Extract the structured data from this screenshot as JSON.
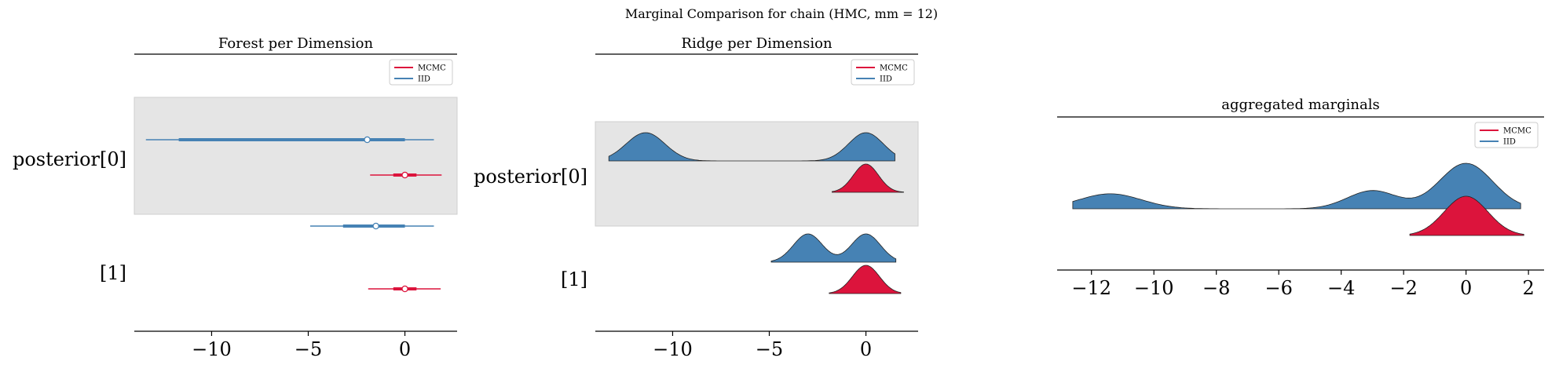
{
  "figure": {
    "suptitle": "Marginal Comparison for chain (HMC, mm = 12)"
  },
  "colors": {
    "mcmc": "#dc143c",
    "iid": "#4682b4",
    "band": "#e5e5e5",
    "axis": "#000000"
  },
  "legend": {
    "entries": [
      {
        "name": "MCMC",
        "color_key": "mcmc"
      },
      {
        "name": "IID",
        "color_key": "iid"
      }
    ]
  },
  "chart_data": [
    {
      "type": "forest",
      "title": "Forest per Dimension",
      "xlim": [
        -14,
        2.7
      ],
      "xticks": [
        -10,
        -5,
        0
      ],
      "xtick_labels": [
        "−10",
        "−5",
        "0"
      ],
      "row_labels": [
        "posterior[0]",
        "[1]"
      ],
      "legend_position": "top-right",
      "rows": [
        {
          "label": "posterior[0]",
          "shaded": true,
          "series": [
            {
              "name": "IID",
              "thin": [
                -13.4,
                1.5
              ],
              "thick": [
                -11.7,
                0.0
              ],
              "point": -1.95
            },
            {
              "name": "MCMC",
              "thin": [
                -1.8,
                1.9
              ],
              "thick": [
                -0.6,
                0.6
              ],
              "point": 0.0
            }
          ]
        },
        {
          "label": "[1]",
          "shaded": false,
          "series": [
            {
              "name": "IID",
              "thin": [
                -4.9,
                1.5
              ],
              "thick": [
                -3.2,
                0.0
              ],
              "point": -1.5
            },
            {
              "name": "MCMC",
              "thin": [
                -1.9,
                1.85
              ],
              "thick": [
                -0.6,
                0.6
              ],
              "point": 0.0
            }
          ]
        }
      ]
    },
    {
      "type": "ridge",
      "title": "Ridge per Dimension",
      "xlim": [
        -14,
        2.7
      ],
      "xticks": [
        -10,
        -5,
        0
      ],
      "xtick_labels": [
        "−10",
        "−5",
        "0"
      ],
      "row_labels": [
        "posterior[0]",
        "[1]"
      ],
      "legend_position": "top-right",
      "rows": [
        {
          "label": "posterior[0]",
          "shaded": true,
          "series": [
            {
              "name": "IID",
              "range": [
                -13.3,
                1.5
              ],
              "peaks": [
                {
                  "mu": -11.4,
                  "sd": 1.0,
                  "h": 1.0
                },
                {
                  "mu": 0.0,
                  "sd": 0.9,
                  "h": 1.0
                }
              ]
            },
            {
              "name": "MCMC",
              "range": [
                -1.75,
                1.95
              ],
              "peaks": [
                {
                  "mu": 0.0,
                  "sd": 0.65,
                  "h": 1.0
                }
              ]
            }
          ]
        },
        {
          "label": "[1]",
          "shaded": false,
          "series": [
            {
              "name": "IID",
              "range": [
                -4.9,
                1.55
              ],
              "peaks": [
                {
                  "mu": -3.0,
                  "sd": 0.75,
                  "h": 1.0
                },
                {
                  "mu": 0.0,
                  "sd": 0.75,
                  "h": 1.0
                }
              ]
            },
            {
              "name": "MCMC",
              "range": [
                -1.9,
                1.8
              ],
              "peaks": [
                {
                  "mu": 0.0,
                  "sd": 0.7,
                  "h": 1.0
                }
              ]
            }
          ]
        }
      ]
    },
    {
      "type": "density",
      "title": "aggregated marginals",
      "xlim": [
        -13.1,
        2.5
      ],
      "xticks": [
        -12,
        -10,
        -8,
        -6,
        -4,
        -2,
        0,
        2
      ],
      "xtick_labels": [
        "−12",
        "−10",
        "−8",
        "−6",
        "−4",
        "−2",
        "0",
        "2"
      ],
      "legend_position": "top-right",
      "series": [
        {
          "name": "IID",
          "range": [
            -12.6,
            1.75
          ],
          "peaks": [
            {
              "mu": -11.4,
              "sd": 1.0,
              "h": 0.33
            },
            {
              "mu": -3.0,
              "sd": 0.8,
              "h": 0.4
            },
            {
              "mu": 0.0,
              "sd": 0.85,
              "h": 1.0
            }
          ]
        },
        {
          "name": "MCMC",
          "range": [
            -1.8,
            1.85
          ],
          "peaks": [
            {
              "mu": 0.0,
              "sd": 0.7,
              "h": 1.0
            }
          ]
        }
      ]
    }
  ]
}
